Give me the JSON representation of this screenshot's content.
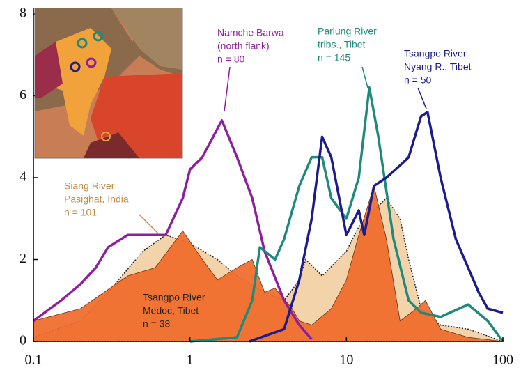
{
  "chart_data": {
    "type": "density",
    "xscale": "log",
    "xlim": [
      0.1,
      100
    ],
    "xticks": [
      0.1,
      1,
      10,
      100
    ],
    "ylim": [
      0,
      8
    ],
    "yticks": [
      0,
      2,
      4,
      6,
      8
    ],
    "series": [
      {
        "label": [
          "Siang River",
          "Pasighat, India",
          "n = 101"
        ],
        "style": "area",
        "color": "#f2d3aa",
        "x": [
          0.1,
          0.2,
          0.3,
          0.5,
          0.7,
          1,
          1.5,
          2,
          3,
          4,
          5,
          5.5,
          7,
          10,
          12,
          15,
          18,
          22,
          25,
          30,
          40,
          60,
          100
        ],
        "values": [
          0.1,
          0.5,
          1.2,
          2.2,
          2.6,
          2.4,
          2.0,
          1.6,
          1.2,
          1.0,
          1.5,
          2.0,
          1.6,
          2.2,
          2.8,
          3.2,
          3.5,
          3.0,
          2.0,
          0.8,
          0.4,
          0.3,
          0
        ]
      },
      {
        "label": [
          "Tsangpo River",
          "Medoc, Tibet",
          "n = 38"
        ],
        "style": "area",
        "color": "#f06a2a",
        "x": [
          0.1,
          0.2,
          0.4,
          0.6,
          0.9,
          1.2,
          1.5,
          2,
          2.5,
          3,
          3.5,
          4.5,
          5,
          6,
          8,
          10,
          12,
          15,
          18,
          22,
          28,
          32,
          40,
          60,
          100
        ],
        "values": [
          0.5,
          0.8,
          1.6,
          1.8,
          2.7,
          2.0,
          1.5,
          1.8,
          2.0,
          1.2,
          1.3,
          0.8,
          0.5,
          0.4,
          0.8,
          1.5,
          2.6,
          3.8,
          2.5,
          0.5,
          0.8,
          1.0,
          0.3,
          0.1,
          0
        ]
      },
      {
        "label": [
          "Namche Barwa",
          "(north flank)",
          "n = 80"
        ],
        "style": "line",
        "color": "#8e1f9e",
        "x": [
          0.1,
          0.15,
          0.2,
          0.25,
          0.3,
          0.4,
          0.5,
          0.7,
          0.9,
          1.0,
          1.2,
          1.6,
          2,
          2.5,
          3,
          4,
          5,
          6
        ],
        "values": [
          0.5,
          1.0,
          1.4,
          1.8,
          2.3,
          2.6,
          2.6,
          2.6,
          3.5,
          4.2,
          4.5,
          5.4,
          4.5,
          3.5,
          2.2,
          1.0,
          0.4,
          0.05
        ]
      },
      {
        "label": [
          "Parlung River",
          "tribs., Tibet",
          "n = 145"
        ],
        "style": "line",
        "color": "#1e8a7c",
        "x": [
          1.0,
          2.0,
          2.5,
          2.8,
          3.5,
          4,
          5,
          6,
          7,
          8,
          10,
          12,
          14,
          16,
          20,
          25,
          30,
          40,
          60,
          80,
          100
        ],
        "values": [
          0,
          0.1,
          1.0,
          2.3,
          2.0,
          2.5,
          3.8,
          4.5,
          4.5,
          3.5,
          3.0,
          4.0,
          6.2,
          5.0,
          2.5,
          1.0,
          0.7,
          0.6,
          0.9,
          0.5,
          0
        ]
      },
      {
        "label": [
          "Tsangpo River",
          "Nyang R., Tibet",
          "n = 50"
        ],
        "style": "line",
        "color": "#1c1c8c",
        "x": [
          2.4,
          4,
          5,
          6,
          7,
          8,
          10,
          12,
          13,
          15,
          18,
          22,
          25,
          30,
          33,
          40,
          50,
          70,
          80,
          100
        ],
        "values": [
          0,
          0.3,
          1.5,
          3.0,
          5.0,
          4.5,
          2.6,
          3.2,
          2.6,
          3.8,
          4.0,
          4.3,
          4.5,
          5.5,
          5.6,
          4.0,
          2.5,
          1.2,
          0.8,
          0.7
        ]
      }
    ]
  }
}
